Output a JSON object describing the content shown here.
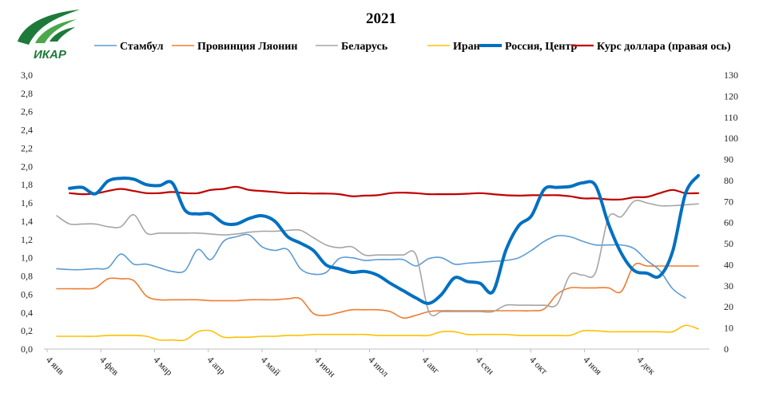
{
  "logo": {
    "text": "ИКАР",
    "color": "#1d7a3a"
  },
  "chart_data": {
    "type": "line",
    "title": "2021",
    "legend_position": "top",
    "grid": false,
    "x_ticks": [
      "4 янв",
      "4 фев",
      "4 мар",
      "4 апр",
      "4 май",
      "4 июн",
      "4 июл",
      "4 авг",
      "4 сен",
      "4 окт",
      "4 ноя",
      "4 дек"
    ],
    "xlim": [
      0,
      50
    ],
    "y_left": {
      "lim": [
        0,
        3.0
      ],
      "step": 0.2,
      "decimal": ","
    },
    "y_right": {
      "lim": [
        0,
        130
      ],
      "step": 10
    },
    "series": [
      {
        "name": "Стамбул",
        "color": "#5b9bd5",
        "width": 1.6,
        "axis": "left",
        "x": [
          0,
          1,
          2,
          3,
          4,
          5,
          6,
          7,
          8,
          9,
          10,
          11,
          12,
          13,
          14,
          15,
          16,
          17,
          18,
          19,
          20,
          21,
          22,
          23,
          24,
          25,
          26,
          27,
          28,
          29,
          30,
          31,
          32,
          33,
          34,
          35,
          36,
          37,
          38,
          39,
          40,
          41,
          42,
          43,
          44,
          45,
          46,
          47,
          48,
          49
        ],
        "values": [
          0.88,
          0.87,
          0.87,
          0.88,
          0.89,
          1.04,
          0.93,
          0.93,
          0.89,
          0.85,
          0.86,
          1.09,
          0.98,
          1.18,
          1.23,
          1.25,
          1.12,
          1.08,
          1.09,
          0.88,
          0.82,
          0.84,
          0.99,
          1.0,
          0.97,
          0.98,
          0.98,
          0.98,
          0.91,
          0.99,
          1.0,
          0.93,
          0.94,
          0.95,
          0.96,
          0.97,
          1.0,
          1.08,
          1.18,
          1.24,
          1.23,
          1.18,
          1.14,
          1.14,
          1.14,
          1.1,
          0.97,
          0.86,
          0.66,
          0.56
        ]
      },
      {
        "name": "Провинция Ляонин",
        "color": "#ed7d31",
        "width": 1.6,
        "axis": "left",
        "x": [
          0,
          1,
          2,
          3,
          4,
          5,
          6,
          7,
          8,
          9,
          10,
          11,
          12,
          13,
          14,
          15,
          16,
          17,
          18,
          19,
          20,
          21,
          22,
          23,
          24,
          25,
          26,
          27,
          28,
          29,
          30,
          31,
          32,
          33,
          34,
          35,
          36,
          37,
          38,
          39,
          40,
          41,
          42,
          43,
          44,
          45,
          46,
          47,
          48,
          49,
          50
        ],
        "values": [
          0.66,
          0.66,
          0.66,
          0.67,
          0.77,
          0.77,
          0.75,
          0.58,
          0.54,
          0.54,
          0.54,
          0.54,
          0.53,
          0.53,
          0.53,
          0.54,
          0.54,
          0.54,
          0.55,
          0.55,
          0.39,
          0.37,
          0.4,
          0.43,
          0.43,
          0.43,
          0.41,
          0.34,
          0.37,
          0.41,
          0.42,
          0.42,
          0.42,
          0.42,
          0.42,
          0.42,
          0.42,
          0.42,
          0.44,
          0.6,
          0.67,
          0.67,
          0.67,
          0.67,
          0.63,
          0.92,
          0.91,
          0.91,
          0.91,
          0.91,
          0.91
        ]
      },
      {
        "name": "Беларусь",
        "color": "#a5a5a5",
        "width": 1.6,
        "axis": "left",
        "x": [
          0,
          1,
          2,
          3,
          4,
          5,
          6,
          7,
          8,
          9,
          10,
          11,
          12,
          13,
          14,
          15,
          16,
          17,
          18,
          19,
          20,
          21,
          22,
          23,
          24,
          25,
          26,
          27,
          28,
          29,
          30,
          31,
          32,
          33,
          34,
          35,
          36,
          37,
          38,
          39,
          40,
          41,
          42,
          43,
          44,
          45,
          46,
          47,
          48,
          49,
          50
        ],
        "values": [
          1.46,
          1.37,
          1.37,
          1.37,
          1.34,
          1.34,
          1.47,
          1.27,
          1.27,
          1.27,
          1.27,
          1.27,
          1.26,
          1.25,
          1.26,
          1.28,
          1.29,
          1.29,
          1.3,
          1.3,
          1.22,
          1.14,
          1.11,
          1.12,
          1.03,
          1.03,
          1.03,
          1.03,
          1.03,
          0.41,
          0.41,
          0.41,
          0.41,
          0.41,
          0.41,
          0.48,
          0.48,
          0.48,
          0.48,
          0.49,
          0.81,
          0.81,
          0.84,
          1.44,
          1.45,
          1.62,
          1.6,
          1.57,
          1.57,
          1.58,
          1.59
        ]
      },
      {
        "name": "Иран",
        "color": "#ffc000",
        "width": 1.6,
        "axis": "left",
        "x": [
          0,
          1,
          2,
          3,
          4,
          5,
          6,
          7,
          8,
          9,
          10,
          11,
          12,
          13,
          14,
          15,
          16,
          17,
          18,
          19,
          20,
          21,
          22,
          23,
          24,
          25,
          26,
          27,
          28,
          29,
          30,
          31,
          32,
          33,
          34,
          35,
          36,
          37,
          38,
          39,
          40,
          41,
          42,
          43,
          44,
          45,
          46,
          47,
          48,
          49,
          50
        ],
        "values": [
          0.14,
          0.14,
          0.14,
          0.14,
          0.15,
          0.15,
          0.15,
          0.14,
          0.1,
          0.1,
          0.1,
          0.19,
          0.2,
          0.13,
          0.13,
          0.13,
          0.14,
          0.14,
          0.15,
          0.15,
          0.16,
          0.16,
          0.16,
          0.16,
          0.16,
          0.15,
          0.15,
          0.15,
          0.15,
          0.15,
          0.19,
          0.19,
          0.16,
          0.16,
          0.16,
          0.16,
          0.15,
          0.15,
          0.15,
          0.15,
          0.15,
          0.2,
          0.2,
          0.19,
          0.19,
          0.19,
          0.19,
          0.19,
          0.19,
          0.26,
          0.22
        ]
      },
      {
        "name": "Россия, Центр",
        "color": "#0070c0",
        "width": 4,
        "axis": "left",
        "x": [
          1,
          2,
          3,
          4,
          5,
          6,
          7,
          8,
          9,
          10,
          11,
          12,
          13,
          14,
          15,
          16,
          17,
          18,
          19,
          20,
          21,
          22,
          23,
          24,
          25,
          26,
          27,
          28,
          29,
          30,
          31,
          32,
          33,
          34,
          35,
          36,
          37,
          38,
          39,
          40,
          41,
          42,
          43,
          44,
          45,
          46,
          47,
          48,
          49,
          50
        ],
        "values": [
          1.76,
          1.77,
          1.7,
          1.84,
          1.87,
          1.86,
          1.8,
          1.79,
          1.82,
          1.52,
          1.48,
          1.48,
          1.38,
          1.37,
          1.43,
          1.46,
          1.4,
          1.23,
          1.16,
          1.08,
          0.92,
          0.88,
          0.84,
          0.85,
          0.81,
          0.72,
          0.64,
          0.56,
          0.5,
          0.6,
          0.78,
          0.74,
          0.72,
          0.63,
          1.08,
          1.35,
          1.46,
          1.75,
          1.77,
          1.78,
          1.82,
          1.79,
          1.37,
          1.05,
          0.86,
          0.83,
          0.8,
          1.07,
          1.7,
          1.9
        ]
      },
      {
        "name": "Курс доллара (правая ось)",
        "color": "#c00000",
        "width": 2.2,
        "axis": "right",
        "x": [
          1,
          2,
          3,
          4,
          5,
          6,
          7,
          8,
          9,
          10,
          11,
          12,
          13,
          14,
          15,
          16,
          17,
          18,
          19,
          20,
          21,
          22,
          23,
          24,
          25,
          26,
          27,
          28,
          29,
          30,
          31,
          32,
          33,
          34,
          35,
          36,
          37,
          38,
          39,
          40,
          41,
          42,
          43,
          44,
          45,
          46,
          47,
          48,
          49,
          50
        ],
        "values": [
          74,
          73.5,
          73.8,
          75,
          76,
          75,
          74,
          74,
          74.5,
          74,
          74,
          75.5,
          76,
          77,
          75.5,
          75,
          74.5,
          74,
          74,
          73.8,
          73.8,
          73.5,
          72.5,
          72.8,
          73,
          74,
          74.2,
          74,
          73.5,
          73.5,
          73.5,
          73.7,
          74,
          73.5,
          73,
          72.8,
          73,
          73,
          73,
          72.5,
          71.5,
          71.5,
          71,
          71,
          72,
          72.2,
          74,
          75.5,
          74,
          74
        ]
      }
    ]
  }
}
